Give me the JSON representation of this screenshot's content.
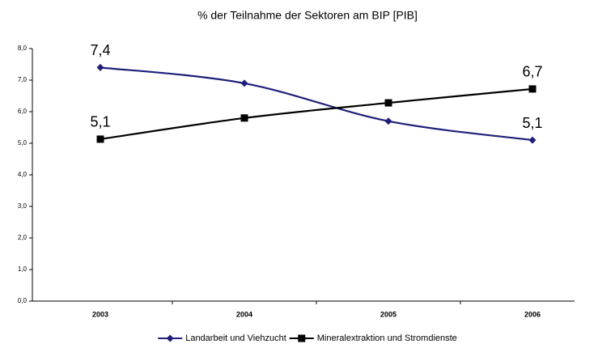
{
  "chart_data": {
    "type": "line",
    "title": "% der Teilnahme der Sektoren am BIP [PIB]",
    "categories": [
      "2003",
      "2004",
      "2005",
      "2006"
    ],
    "series": [
      {
        "name": "Landarbeit und Viehzucht",
        "color": "#1f1f7a",
        "marker": "diamond",
        "values": [
          7.4,
          6.9,
          5.7,
          5.1
        ],
        "value_labels": [
          "7,4",
          null,
          null,
          "5,1"
        ]
      },
      {
        "name": "Mineralextraktion und Stromdienste",
        "color": "#000000",
        "marker": "square",
        "values": [
          5.13,
          5.8,
          6.28,
          6.72
        ],
        "value_labels": [
          "5,1",
          null,
          null,
          "6,7"
        ]
      }
    ],
    "ylim": [
      0,
      8
    ],
    "yticks": [
      {
        "value": 0,
        "label": "0,0"
      },
      {
        "value": 1,
        "label": "1,0"
      },
      {
        "value": 2,
        "label": "2,0"
      },
      {
        "value": 3,
        "label": "3,0"
      },
      {
        "value": 4,
        "label": "4,0"
      },
      {
        "value": 5,
        "label": "5,0"
      },
      {
        "value": 6,
        "label": "6,0"
      },
      {
        "value": 7,
        "label": "7,0"
      },
      {
        "value": 8,
        "label": "8,0"
      }
    ],
    "smooth": true,
    "legend": "bottom"
  }
}
